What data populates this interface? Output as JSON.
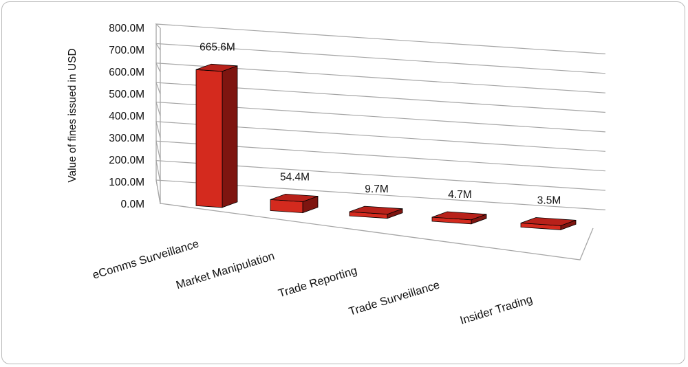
{
  "chart_data": {
    "type": "bar",
    "variant": "3d-perspective",
    "title": "",
    "xlabel": "",
    "ylabel": "Value of fines issued in USD",
    "ylim": [
      0,
      800
    ],
    "yticks": [
      "0.0M",
      "100.0M",
      "200.0M",
      "300.0M",
      "400.0M",
      "500.0M",
      "600.0M",
      "700.0M",
      "800.0M"
    ],
    "categories": [
      "eComms Surveillance",
      "Market Manipulation",
      "Trade Reporting",
      "Trade Surveillance",
      "Insider Trading"
    ],
    "values": [
      665.6,
      54.4,
      9.7,
      4.7,
      3.5
    ],
    "data_labels": [
      "665.6M",
      "54.4M",
      "9.7M",
      "4.7M",
      "3.5M"
    ],
    "grid": true,
    "legend": "none",
    "colors": {
      "bar_front": "#d42a1e",
      "bar_side": "#7e1510",
      "bar_top": "#b8211a",
      "grid": "#a6a6a6"
    }
  }
}
